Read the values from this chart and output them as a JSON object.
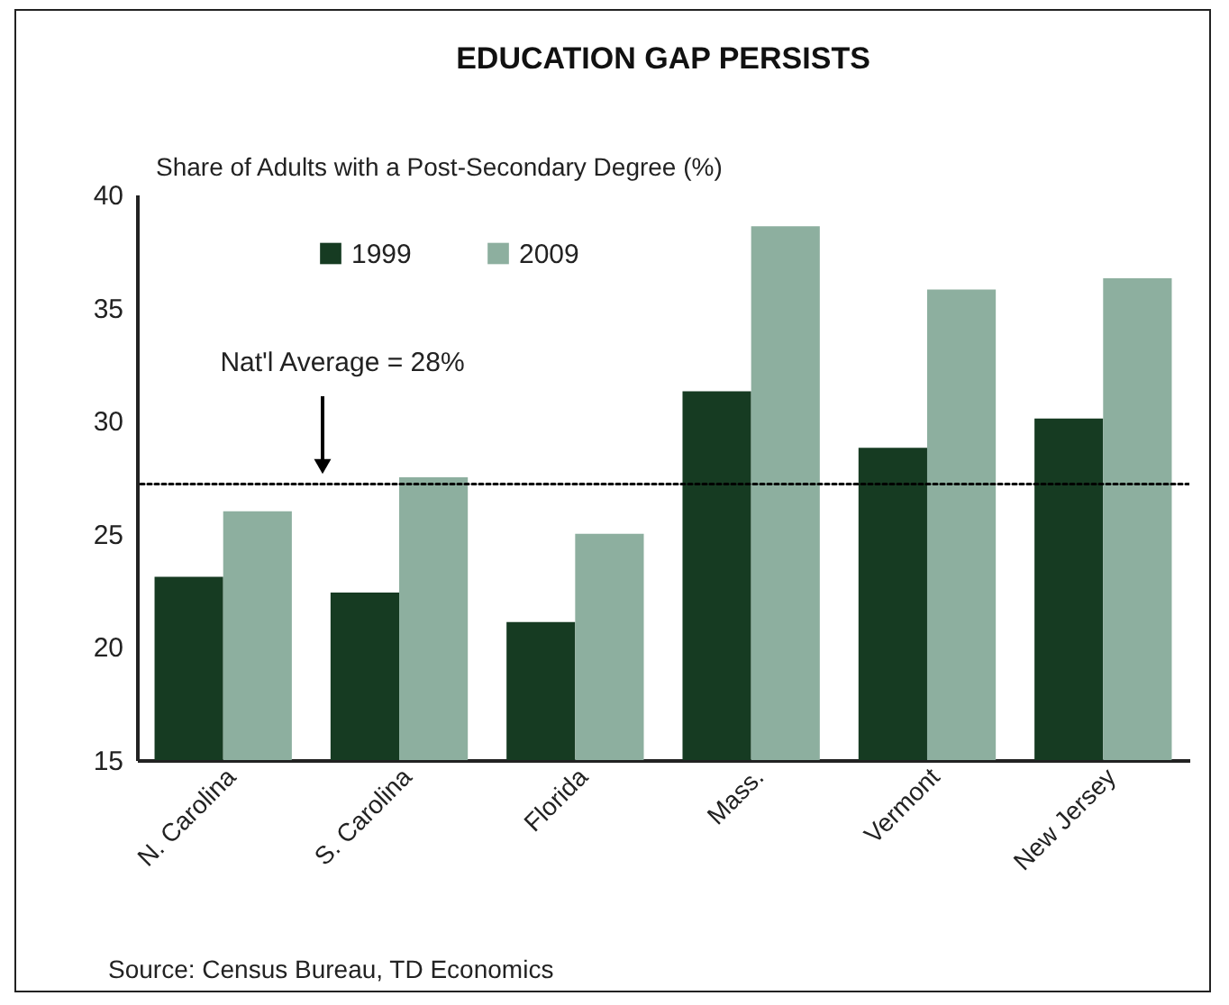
{
  "chart_data": {
    "type": "bar",
    "title": "EDUCATION GAP PERSISTS",
    "ylabel": "Share of Adults with a Post-Secondary Degree (%)",
    "categories": [
      "N. Carolina",
      "S. Carolina",
      "Florida",
      "Mass.",
      "Vermont",
      "New Jersey"
    ],
    "series": [
      {
        "name": "1999",
        "color": "#163b22",
        "values": [
          23.1,
          22.4,
          21.1,
          31.3,
          28.8,
          30.1
        ]
      },
      {
        "name": "2009",
        "color": "#8daf9f",
        "values": [
          26.0,
          27.5,
          25.0,
          38.6,
          35.8,
          36.3
        ]
      }
    ],
    "ylim": [
      15,
      40
    ],
    "yticks": [
      15,
      20,
      25,
      30,
      35,
      40
    ],
    "grid": false,
    "legend": "top left",
    "ref_lines": [
      {
        "axis": "y",
        "value": 27.2,
        "line_style": "dotted",
        "color": "#000000"
      }
    ],
    "annotations": [
      "Nat'l Average = 28%",
      "Source: Census Bureau, TD Economics"
    ]
  }
}
